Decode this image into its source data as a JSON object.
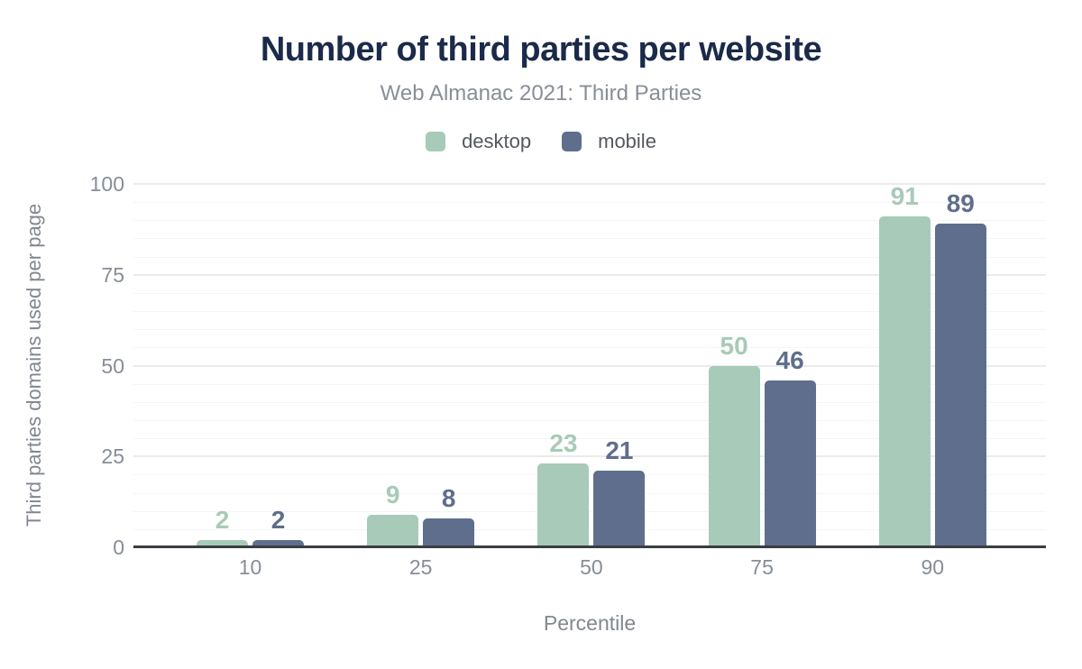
{
  "header": {
    "title": "Number of third parties per website",
    "subtitle": "Web Almanac 2021: Third Parties"
  },
  "axes": {
    "x_title": "Percentile",
    "y_title": "Third parties domains used per page"
  },
  "colors": {
    "title_text": "#1b2a4a",
    "muted_text": "#888e98",
    "axis_text": "#878d96",
    "legend_text": "#54585f",
    "axis_line": "#3a3d42",
    "desktop": "#a8cab8",
    "mobile": "#5f6e8c"
  },
  "chart_data": {
    "type": "bar",
    "title": "Number of third parties per website",
    "subtitle": "Web Almanac 2021: Third Parties",
    "xlabel": "Percentile",
    "ylabel": "Third parties domains used per page",
    "categories": [
      "10",
      "25",
      "50",
      "75",
      "90"
    ],
    "series": [
      {
        "name": "desktop",
        "color": "#a8cab8",
        "values": [
          2,
          9,
          23,
          50,
          91
        ]
      },
      {
        "name": "mobile",
        "color": "#5f6e8c",
        "values": [
          2,
          8,
          21,
          46,
          89
        ]
      }
    ],
    "value_labels_shown": true,
    "ylim": [
      0,
      100
    ],
    "yticks": [
      "0",
      "25",
      "50",
      "75",
      "100"
    ],
    "grid": "horizontal, minor every 5, major every 25",
    "legend_position": "top-center"
  }
}
